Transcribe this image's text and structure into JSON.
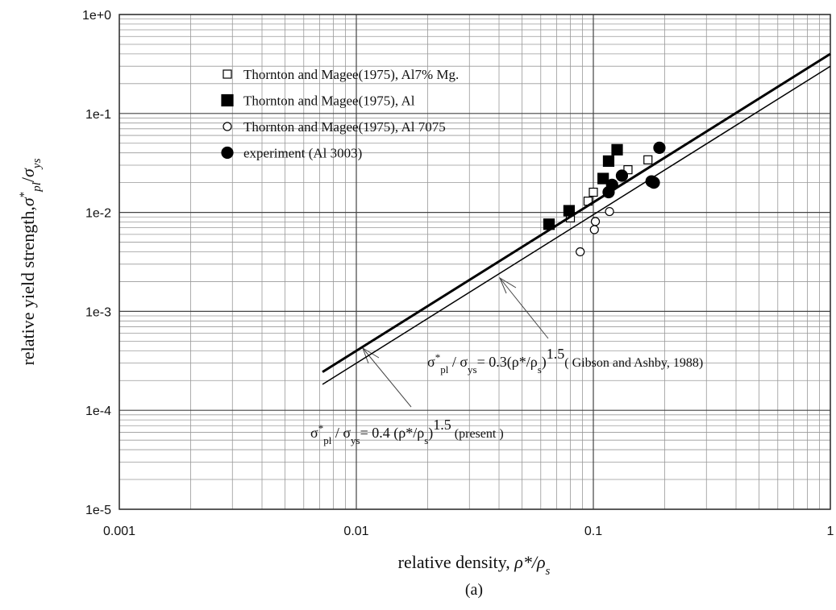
{
  "chart_data": {
    "type": "scatter",
    "xscale": "log",
    "yscale": "log",
    "grid": true,
    "xlim": [
      0.001,
      1
    ],
    "ylim": [
      1e-05,
      1
    ],
    "xticks": [
      0.001,
      0.01,
      0.1,
      1
    ],
    "yticks": [
      {
        "value": 1e-05,
        "label": "1e-5"
      },
      {
        "value": 0.0001,
        "label": "1e-4"
      },
      {
        "value": 0.001,
        "label": "1e-3"
      },
      {
        "value": 0.01,
        "label": "1e-2"
      },
      {
        "value": 0.1,
        "label": "1e-1"
      },
      {
        "value": 1,
        "label": "1e+0"
      }
    ],
    "xlabel": [
      "relative density, ",
      "ρ",
      "*/",
      "ρ",
      "s"
    ],
    "ylabel": [
      "relative yield strength,",
      "σ",
      "*",
      "pl",
      "/",
      "σ",
      "ys"
    ],
    "caption": "(a)",
    "series": [
      {
        "name": "Thornton and Magee(1975), Al7% Mg.",
        "marker": "square",
        "filled": false,
        "x": [
          0.08,
          0.095,
          0.1,
          0.14,
          0.17
        ],
        "values": [
          0.0088,
          0.013,
          0.016,
          0.027,
          0.034
        ]
      },
      {
        "name": "Thornton and Magee(1975), Al",
        "marker": "square",
        "filled": true,
        "x": [
          0.065,
          0.079,
          0.11,
          0.116,
          0.126
        ],
        "values": [
          0.0076,
          0.0104,
          0.022,
          0.033,
          0.043
        ]
      },
      {
        "name": "Thornton and Magee(1975), Al 7075",
        "marker": "circle",
        "filled": false,
        "x": [
          0.088,
          0.101,
          0.102,
          0.117
        ],
        "values": [
          0.004,
          0.0067,
          0.0081,
          0.0102
        ]
      },
      {
        "name": "experiment (Al 3003)",
        "marker": "circle",
        "filled": true,
        "x": [
          0.116,
          0.12,
          0.132,
          0.176,
          0.18,
          0.19
        ],
        "values": [
          0.016,
          0.019,
          0.0235,
          0.0206,
          0.02,
          0.045
        ]
      },
      {
        "marker": "line",
        "width": 3,
        "x": [
          0.0072,
          1
        ],
        "values": [
          0.000244,
          0.4
        ]
      },
      {
        "marker": "line",
        "width": 1.5,
        "x": [
          0.0072,
          1
        ],
        "values": [
          0.000183,
          0.3
        ]
      }
    ],
    "annotations": [
      [
        "σ",
        "*",
        "pl",
        " / σ",
        "ys",
        "= 0.3(ρ*/ρ",
        "s",
        ")",
        "1.5",
        "( Gibson and Ashby, 1988)"
      ],
      [
        "σ",
        "*",
        "pl",
        " / σ",
        "ys",
        "= 0.4 (ρ*/ρ",
        "s",
        ")",
        "1.5",
        " (present )"
      ]
    ]
  }
}
